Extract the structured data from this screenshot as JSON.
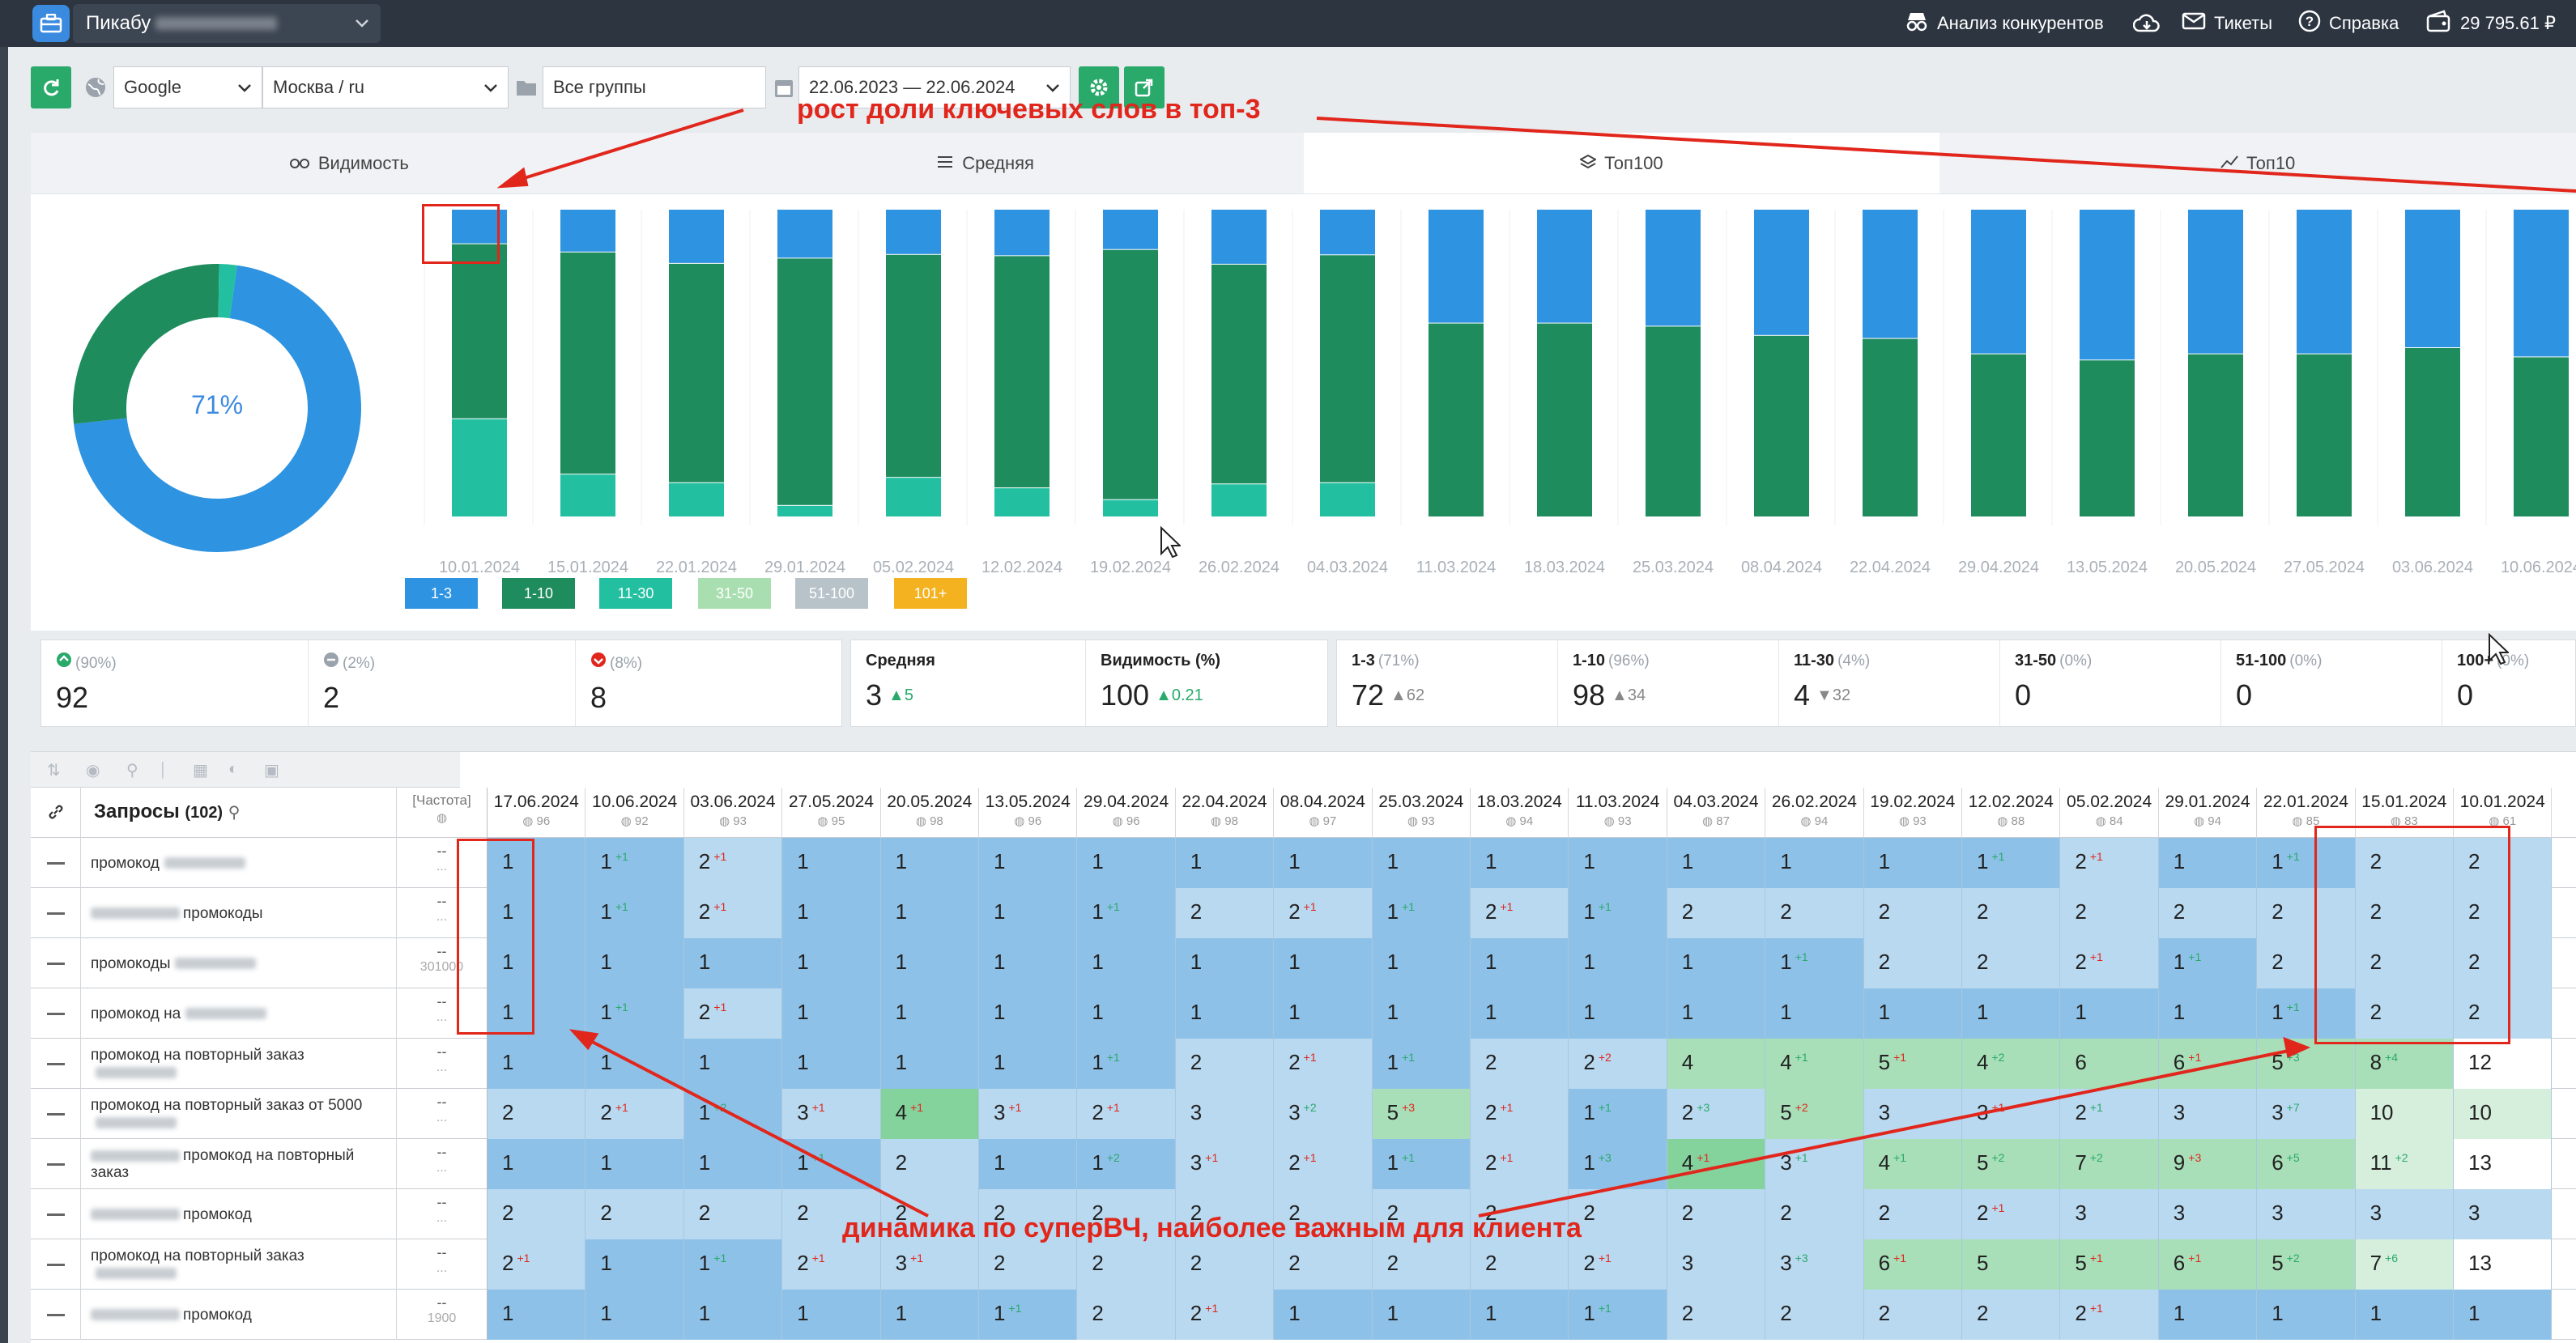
{
  "topbar": {
    "workspace": "Пикабу",
    "competitors": "Анализ конкурентов",
    "tickets": "Тикеты",
    "help": "Справка",
    "balance": "29 795.61 ₽"
  },
  "toolbar": {
    "engine": "Google",
    "region": "Москва / ru",
    "groups": "Все группы",
    "daterange": "22.06.2023 — 22.06.2024"
  },
  "annotations": {
    "top": "рост доли ключевых слов в топ-3",
    "bottom": "динамика по суперВЧ, наиболее важным для клиента"
  },
  "tabs": [
    "Видимость",
    "Средняя",
    "Топ100",
    "Топ10"
  ],
  "donut": {
    "label": "71%",
    "segments": [
      {
        "name": "1-3",
        "pct": 71,
        "color": "#2e93e0"
      },
      {
        "name": "1-10",
        "pct": 27,
        "color": "#1f8c5e"
      },
      {
        "name": "11-30",
        "pct": 2,
        "color": "#22c0a0"
      }
    ]
  },
  "chart_data": {
    "type": "bar",
    "stacked": true,
    "categories": [
      "10.01.2024",
      "15.01.2024",
      "22.01.2024",
      "29.01.2024",
      "05.02.2024",
      "12.02.2024",
      "19.02.2024",
      "26.02.2024",
      "04.03.2024",
      "11.03.2024",
      "18.03.2024",
      "25.03.2024",
      "08.04.2024",
      "22.04.2024",
      "29.04.2024",
      "13.05.2024",
      "20.05.2024",
      "27.05.2024",
      "03.06.2024",
      "10.06.2024"
    ],
    "series": [
      {
        "name": "1-3",
        "color": "#2e93e0",
        "values": [
          13,
          15,
          19,
          17,
          16,
          16,
          14,
          20,
          16,
          37,
          37,
          38,
          41,
          42,
          47,
          49,
          47,
          47,
          45,
          48
        ]
      },
      {
        "name": "1-10",
        "color": "#1f8c5e",
        "values": [
          66,
          78,
          77,
          86,
          79,
          80,
          87,
          80,
          80,
          63,
          63,
          62,
          59,
          58,
          53,
          51,
          53,
          53,
          55,
          52
        ]
      },
      {
        "name": "11-30",
        "color": "#22c0a0",
        "values": [
          37,
          15,
          12,
          4,
          14,
          10,
          6,
          12,
          12,
          0,
          0,
          0,
          0,
          0,
          0,
          0,
          0,
          0,
          0,
          0
        ]
      }
    ],
    "legend": [
      {
        "label": "1-3",
        "color": "#2e93e0"
      },
      {
        "label": "1-10",
        "color": "#1f8c5e"
      },
      {
        "label": "11-30",
        "color": "#22c0a0"
      },
      {
        "label": "31-50",
        "color": "#a9dfb0"
      },
      {
        "label": "51-100",
        "color": "#b7c3c9"
      },
      {
        "label": "101+",
        "color": "#f5b220"
      }
    ]
  },
  "stats": {
    "up": {
      "pct": "(90%)",
      "value": "92"
    },
    "same": {
      "pct": "(2%)",
      "value": "2"
    },
    "down": {
      "pct": "(8%)",
      "value": "8"
    },
    "avg": {
      "label": "Средняя",
      "value": "3",
      "delta": "5"
    },
    "vis": {
      "label": "Видимость (%)",
      "value": "100",
      "delta": "0.21"
    },
    "r13": {
      "label": "1-3",
      "pct": "(71%)",
      "value": "72",
      "delta": "62"
    },
    "r110": {
      "label": "1-10",
      "pct": "(96%)",
      "value": "98",
      "delta": "34"
    },
    "r1130": {
      "label": "11-30",
      "pct": "(4%)",
      "value": "4",
      "delta": "32"
    },
    "r3150": {
      "label": "31-50",
      "pct": "(0%)",
      "value": "0"
    },
    "r51100": {
      "label": "51-100",
      "pct": "(0%)",
      "value": "0"
    },
    "r100p": {
      "label": "100+",
      "pct": "(0%)",
      "value": "0"
    }
  },
  "table": {
    "queries_label": "Запросы",
    "queries_count": "(102)",
    "freq_label": "[Частота]",
    "dates": [
      {
        "d": "17.06.2024",
        "v": "96"
      },
      {
        "d": "10.06.2024",
        "v": "92"
      },
      {
        "d": "03.06.2024",
        "v": "93"
      },
      {
        "d": "27.05.2024",
        "v": "95"
      },
      {
        "d": "20.05.2024",
        "v": "98"
      },
      {
        "d": "13.05.2024",
        "v": "96"
      },
      {
        "d": "29.04.2024",
        "v": "96"
      },
      {
        "d": "22.04.2024",
        "v": "98"
      },
      {
        "d": "08.04.2024",
        "v": "97"
      },
      {
        "d": "25.03.2024",
        "v": "93"
      },
      {
        "d": "18.03.2024",
        "v": "94"
      },
      {
        "d": "11.03.2024",
        "v": "93"
      },
      {
        "d": "04.03.2024",
        "v": "87"
      },
      {
        "d": "26.02.2024",
        "v": "94"
      },
      {
        "d": "19.02.2024",
        "v": "93"
      },
      {
        "d": "12.02.2024",
        "v": "88"
      },
      {
        "d": "05.02.2024",
        "v": "84"
      },
      {
        "d": "29.01.2024",
        "v": "94"
      },
      {
        "d": "22.01.2024",
        "v": "85"
      },
      {
        "d": "15.01.2024",
        "v": "83"
      },
      {
        "d": "10.01.2024",
        "v": "61"
      }
    ],
    "rows": [
      {
        "name": "промокод",
        "pre": "",
        "freq": "--",
        "freq2": "...",
        "cells": [
          "1",
          "1|+1|u",
          "2|+1|d",
          "1",
          "1",
          "1",
          "1",
          "1",
          "1",
          "1",
          "1",
          "1",
          "1",
          "1",
          "1",
          "1|+1|u",
          "2|+1|d",
          "1",
          "1|+1|u",
          "2",
          "2"
        ],
        "cls": "1,1,2,1,1,1,1,1,1,1,1,1,1,1,1,1,2,1,1,2,2"
      },
      {
        "name": "промокоды",
        "pre": "b",
        "freq": "--",
        "freq2": "...",
        "cells": [
          "1",
          "1|+1|u",
          "2|+1|d",
          "1",
          "1",
          "1",
          "1|+1|u",
          "2",
          "2|+1|d",
          "1|+1|u",
          "2|+1|d",
          "1|+1|u",
          "2",
          "2",
          "2",
          "2",
          "2",
          "2",
          "2",
          "2",
          "2"
        ],
        "cls": "1,1,2,1,1,1,1,2,2,1,2,1,2,2,2,2,2,2,2,2,2"
      },
      {
        "name": "промокоды",
        "pre": "",
        "freq": "--",
        "freq2": "301000",
        "cells": [
          "1",
          "1",
          "1",
          "1",
          "1",
          "1",
          "1",
          "1",
          "1",
          "1",
          "1",
          "1",
          "1",
          "1|+1|u",
          "2",
          "2",
          "2|+1|d",
          "1|+1|u",
          "2",
          "2",
          "2"
        ],
        "cls": "1,1,1,1,1,1,1,1,1,1,1,1,1,1,2,2,2,1,2,2,2"
      },
      {
        "name": "промокод на",
        "pre": "",
        "freq": "--",
        "freq2": "...",
        "cells": [
          "1",
          "1|+1|u",
          "2|+1|d",
          "1",
          "1",
          "1",
          "1",
          "1",
          "1",
          "1",
          "1",
          "1",
          "1",
          "1",
          "1",
          "1",
          "1",
          "1",
          "1|+1|u",
          "2",
          "2"
        ],
        "cls": "1,1,2,1,1,1,1,1,1,1,1,1,1,1,1,1,1,1,1,2,2"
      },
      {
        "name": "промокод на повторный заказ",
        "pre": "",
        "freq": "--",
        "freq2": "...",
        "cells": [
          "1",
          "1",
          "1",
          "1",
          "1",
          "1",
          "1|+1|u",
          "2",
          "2|+1|d",
          "1|+1|u",
          "2",
          "2|+2|d",
          "4",
          "4|+1|u",
          "5|+1|d",
          "4|+2|u",
          "6",
          "6|+1|d",
          "5|+3|u",
          "8|+4|u",
          "12"
        ],
        "cls": "1,1,1,1,1,1,1,2,2,1,2,2,3,3,3,3,3,3,3,3,6"
      },
      {
        "name": "промокод на повторный заказ от 5000",
        "pre": "",
        "freq": "--",
        "freq2": "...",
        "cells": [
          "2",
          "2|+1|d",
          "1|+2|u",
          "3|+1|d",
          "4|+1|d",
          "3|+1|d",
          "2|+1|d",
          "3",
          "3|+2|u",
          "5|+3|d",
          "2|+1|d",
          "1|+1|u",
          "2|+3|u",
          "5|+2|d",
          "3",
          "3|+1|d",
          "2|+1|u",
          "3",
          "3|+7|u",
          "10",
          "10"
        ],
        "cls": "2,2,1,2,4,2,2,2,2,3,2,1,2,3,2,2,2,2,2,5,5"
      },
      {
        "name": "промокод на повторный заказ",
        "pre": "b",
        "freq": "--",
        "freq2": "...",
        "cells": [
          "1",
          "1",
          "1",
          "1|+1|u",
          "2",
          "1",
          "1|+2|u",
          "3|+1|d",
          "2|+1|d",
          "1|+1|u",
          "2|+1|d",
          "1|+3|u",
          "4|+1|d",
          "3|+1|u",
          "4|+1|u",
          "5|+2|u",
          "7|+2|u",
          "9|+3|d",
          "6|+5|u",
          "11|+2|u",
          "13"
        ],
        "cls": "1,1,1,1,2,1,1,2,2,1,2,1,4,2,3,3,3,3,3,5,6"
      },
      {
        "name": "промокод",
        "pre": "b",
        "freq": "--",
        "freq2": "...",
        "cells": [
          "2",
          "2",
          "2",
          "2",
          "2",
          "2",
          "2",
          "2",
          "2",
          "2",
          "2",
          "2",
          "2",
          "2",
          "2",
          "2|+1|d",
          "3",
          "3",
          "3",
          "3",
          "3"
        ],
        "cls": "2,2,2,2,2,2,2,2,2,2,2,2,2,2,2,2,2,2,2,2,2"
      },
      {
        "name": "промокод на повторный заказ",
        "pre": "",
        "freq": "--",
        "freq2": "...",
        "cells": [
          "2|+1|d",
          "1",
          "1|+1|u",
          "2|+1|d",
          "3|+1|d",
          "2",
          "2",
          "2",
          "2",
          "2",
          "2",
          "2|+1|d",
          "3",
          "3|+3|u",
          "6|+1|d",
          "5",
          "5|+1|d",
          "6|+1|d",
          "5|+2|u",
          "7|+6|u",
          "13"
        ],
        "cls": "2,1,1,2,2,2,2,2,2,2,2,2,2,2,3,3,3,3,3,5,6"
      },
      {
        "name": "промокод",
        "pre": "b",
        "freq": "--",
        "freq2": "1900",
        "cells": [
          "1",
          "1",
          "1",
          "1",
          "1",
          "1|+1|u",
          "2",
          "2|+1|d",
          "1",
          "1",
          "1",
          "1|+1|u",
          "2",
          "2",
          "2",
          "2",
          "2|+1|d",
          "1",
          "1",
          "1",
          "1"
        ],
        "cls": "1,1,1,1,1,1,2,2,1,1,1,1,2,2,2,2,2,1,1,1,1"
      }
    ]
  }
}
